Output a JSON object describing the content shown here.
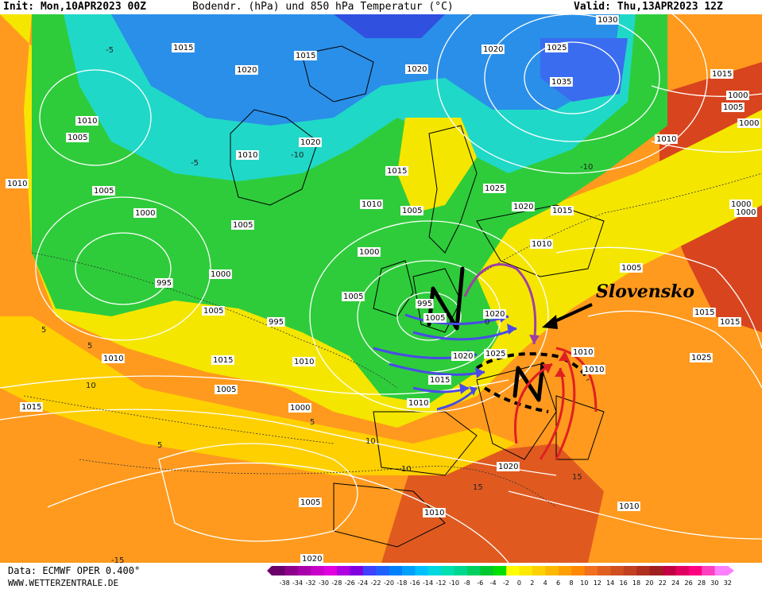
{
  "header": {
    "init": "Init: Mon,10APR2023 00Z",
    "title": "Bodendr. (hPa) und 850 hPa Temperatur (°C)",
    "valid": "Valid: Thu,13APR2023 12Z"
  },
  "footer": {
    "source": "Data: ECMWF OPER 0.400°",
    "url": "WWW.WETTERZENTRALE.DE"
  },
  "annotation": "Slovensko",
  "pressure_labels": [
    {
      "t": "1015"
    },
    {
      "t": "1020"
    },
    {
      "t": "1015"
    },
    {
      "t": "1020"
    },
    {
      "t": "1025"
    },
    {
      "t": "1030"
    },
    {
      "t": "1035"
    },
    {
      "t": "1020"
    },
    {
      "t": "1015"
    },
    {
      "t": "1005"
    },
    {
      "t": "1000"
    },
    {
      "t": "1005"
    },
    {
      "t": "1010"
    },
    {
      "t": "1020"
    },
    {
      "t": "1005"
    },
    {
      "t": "1000"
    },
    {
      "t": "1005"
    },
    {
      "t": "1015"
    },
    {
      "t": "1010"
    },
    {
      "t": "1005"
    },
    {
      "t": "1025"
    },
    {
      "t": "1020"
    },
    {
      "t": "1015"
    },
    {
      "t": "1010"
    },
    {
      "t": "1010"
    },
    {
      "t": "1000"
    },
    {
      "t": "1000"
    },
    {
      "t": "995"
    },
    {
      "t": "1000"
    },
    {
      "t": "1005"
    },
    {
      "t": "995"
    },
    {
      "t": "995"
    },
    {
      "t": "1000"
    },
    {
      "t": "1005"
    },
    {
      "t": "1010"
    },
    {
      "t": "1005"
    },
    {
      "t": "1005"
    },
    {
      "t": "1000"
    },
    {
      "t": "1010"
    },
    {
      "t": "1015"
    },
    {
      "t": "1010"
    },
    {
      "t": "1010"
    },
    {
      "t": "1015"
    },
    {
      "t": "1020"
    },
    {
      "t": "1025"
    },
    {
      "t": "1015"
    },
    {
      "t": "1020"
    },
    {
      "t": "1010"
    },
    {
      "t": "1025"
    },
    {
      "t": "1015"
    },
    {
      "t": "1015"
    },
    {
      "t": "1010"
    },
    {
      "t": "1010"
    },
    {
      "t": "1020"
    },
    {
      "t": "1000"
    },
    {
      "t": "1005"
    },
    {
      "t": "1010"
    },
    {
      "t": "1005"
    },
    {
      "t": "1010"
    },
    {
      "t": "1020"
    }
  ],
  "temp_labels": [
    {
      "t": "-5"
    },
    {
      "t": "-10"
    },
    {
      "t": "-5"
    },
    {
      "t": "0"
    },
    {
      "t": "5"
    },
    {
      "t": "10"
    },
    {
      "t": "5"
    },
    {
      "t": "5"
    },
    {
      "t": "10"
    },
    {
      "t": "10"
    },
    {
      "t": "15"
    },
    {
      "t": "-15"
    },
    {
      "t": "-10"
    },
    {
      "t": "15"
    },
    {
      "t": "5"
    }
  ],
  "legend": {
    "values": [
      "-38",
      "-34",
      "-32",
      "-30",
      "-28",
      "-26",
      "-24",
      "-22",
      "-20",
      "-18",
      "-16",
      "-14",
      "-12",
      "-10",
      "-8",
      "-6",
      "-4",
      "-2",
      "0",
      "2",
      "4",
      "6",
      "8",
      "10",
      "12",
      "14",
      "16",
      "18",
      "20",
      "22",
      "24",
      "26",
      "28",
      "30",
      "32"
    ],
    "colors": [
      "#6a006a",
      "#8c008c",
      "#aa00aa",
      "#c800c8",
      "#e000e0",
      "#b000e0",
      "#8000e0",
      "#4040ff",
      "#2060ff",
      "#0080ff",
      "#00a0ff",
      "#00c0ff",
      "#00d8e0",
      "#00e0b0",
      "#00d890",
      "#00d060",
      "#00c830",
      "#00e000",
      "#ffff00",
      "#ffe800",
      "#ffd000",
      "#ffb800",
      "#ffa000",
      "#ff8800",
      "#f07020",
      "#e06020",
      "#d05020",
      "#c04020",
      "#b03020",
      "#a02020",
      "#c00040",
      "#e00060",
      "#ff0080",
      "#ff40c0",
      "#ff80ff"
    ]
  },
  "colors": {
    "green": "#2ecc3a",
    "cyan": "#20d8c8",
    "blue": "#2a8fe8",
    "deepblue": "#3050e0",
    "yellow": "#f5f000",
    "orange": "#ff9a1e",
    "darkorange": "#f07020",
    "red": "#c8381e"
  }
}
